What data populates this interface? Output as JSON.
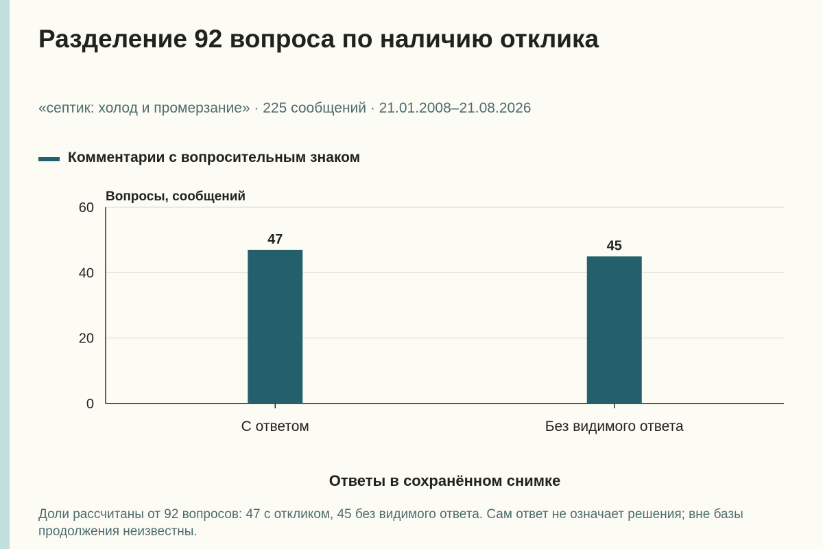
{
  "header": {
    "title": "Разделение 92 вопроса по наличию отклика",
    "subtitle": "«септик: холод и промерзание» · 225 сообщений · 21.01.2008–21.08.2026"
  },
  "footnote": "Доли рассчитаны от 92 вопросов: 47 с откликом, 45 без видимого ответа. Сам ответ не означает решения; вне базы продолжения неизвестны.",
  "colors": {
    "bar": "#24606b",
    "background": "#fdfcf4",
    "grid": "#d8d8d2",
    "axis": "#222222",
    "stripe": "#bfe0df"
  },
  "chart_data": {
    "type": "bar",
    "categories": [
      "С ответом",
      "Без видимого ответа"
    ],
    "series": [
      {
        "name": "Комментарии с вопросительным знаком",
        "values": [
          47,
          45
        ]
      }
    ],
    "data_labels": [
      "47",
      "45"
    ],
    "xlabel": "Ответы в сохранённом снимке",
    "ylabel": "Вопросы, сообщений",
    "ylim": [
      0,
      60
    ],
    "yticks": [
      0,
      20,
      40,
      60
    ],
    "grid": true,
    "legend_position": "top-left"
  }
}
